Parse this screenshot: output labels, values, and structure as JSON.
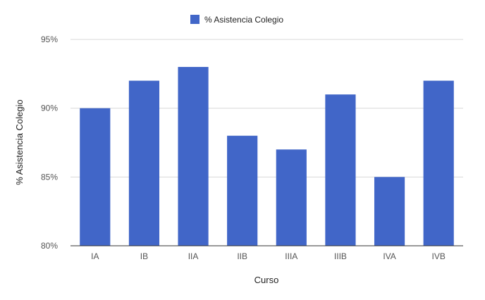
{
  "chart_data": {
    "type": "bar",
    "categories": [
      "IA",
      "IB",
      "IIA",
      "IIB",
      "IIIA",
      "IIIB",
      "IVA",
      "IVB"
    ],
    "series": [
      {
        "name": "% Asistencia Colegio",
        "values": [
          90,
          92,
          93,
          88,
          87,
          91,
          85,
          92
        ]
      }
    ],
    "title": "",
    "xlabel": "Curso",
    "ylabel": "% Asistencia Colegio",
    "ylim": [
      80,
      95
    ],
    "yticks": [
      80,
      85,
      90,
      95
    ],
    "ytick_labels": [
      "80%",
      "85%",
      "90%",
      "95%"
    ],
    "grid": true,
    "legend_position": "top",
    "bar_color": "#4166C8"
  }
}
